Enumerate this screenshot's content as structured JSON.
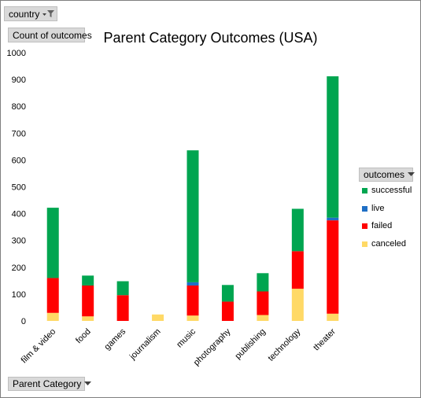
{
  "filters": {
    "country_label": "country",
    "values_label": "Count of outcomes",
    "axis_field_label": "Parent Category",
    "legend_field_label": "outcomes"
  },
  "colors": {
    "successful": "#00a550",
    "live": "#1f6fc5",
    "failed": "#ff0000",
    "canceled": "#ffd966",
    "button_bg": "#d9d9d9"
  },
  "icons": {
    "country_filter": "filter-dropdown-icon",
    "parent_dropdown": "dropdown-arrow-icon",
    "outcomes_dropdown": "dropdown-arrow-icon"
  },
  "chart_data": {
    "type": "bar",
    "stacked": true,
    "title": "Parent Category Outcomes (USA)",
    "xlabel": "",
    "ylabel": "",
    "ylim": [
      0,
      1000
    ],
    "yticks": [
      0,
      100,
      200,
      300,
      400,
      500,
      600,
      700,
      800,
      900,
      1000
    ],
    "grid": false,
    "legend_position": "right",
    "categories": [
      "film & video",
      "food",
      "games",
      "journalism",
      "music",
      "photography",
      "publishing",
      "technology",
      "theater"
    ],
    "series": [
      {
        "name": "canceled",
        "values": [
          30,
          17,
          0,
          24,
          20,
          0,
          22,
          120,
          27
        ]
      },
      {
        "name": "failed",
        "values": [
          130,
          115,
          96,
          0,
          112,
          72,
          88,
          140,
          348
        ]
      },
      {
        "name": "live",
        "values": [
          0,
          0,
          0,
          0,
          12,
          0,
          0,
          0,
          10
        ]
      },
      {
        "name": "successful",
        "values": [
          262,
          37,
          52,
          0,
          492,
          62,
          68,
          158,
          527
        ]
      }
    ]
  }
}
